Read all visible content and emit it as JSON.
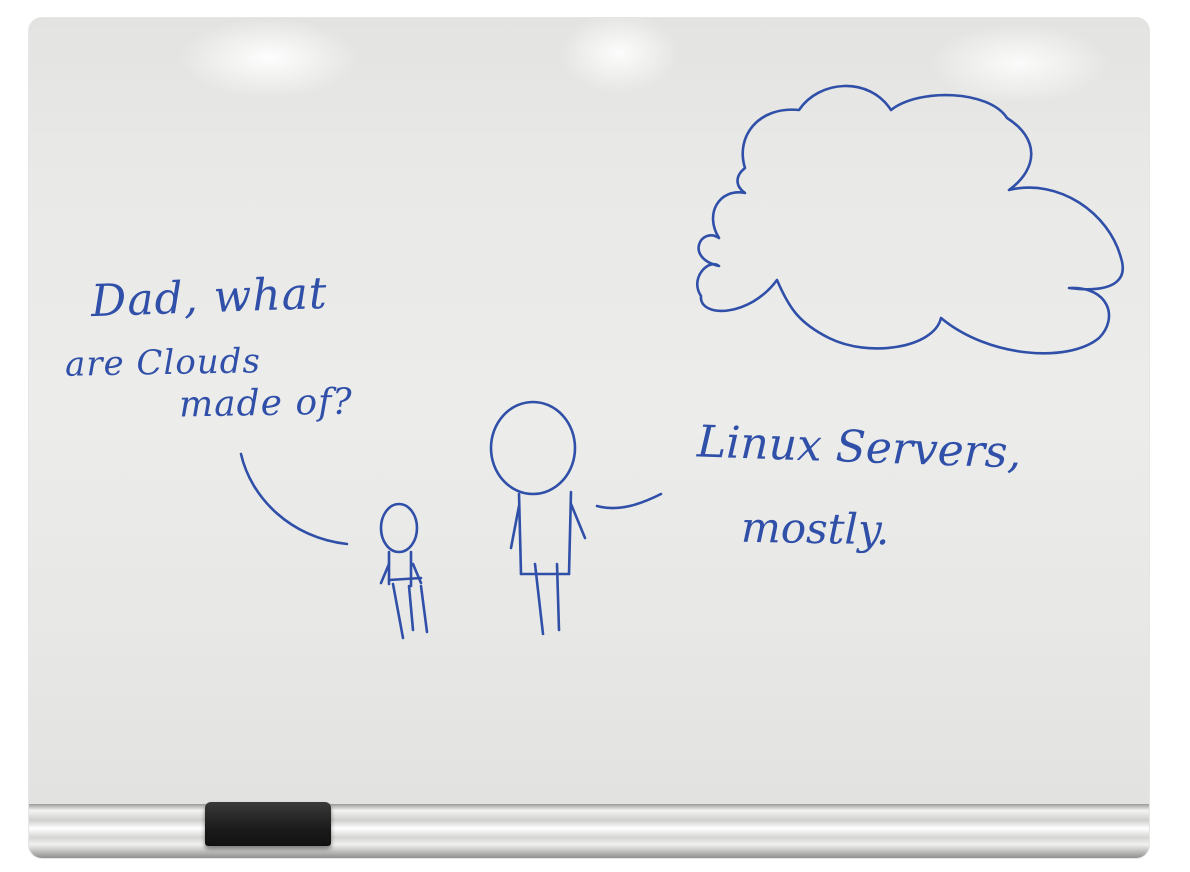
{
  "whiteboard": {
    "question_line_1": "Dad, what",
    "question_line_2": "are Clouds",
    "question_line_3": "made of?",
    "answer_line_1": "Linux Servers,",
    "answer_line_2": "mostly."
  },
  "colors": {
    "marker_ink": "#2f4fa8",
    "board": "#e9e9e7",
    "eraser": "#1b1b1b"
  }
}
